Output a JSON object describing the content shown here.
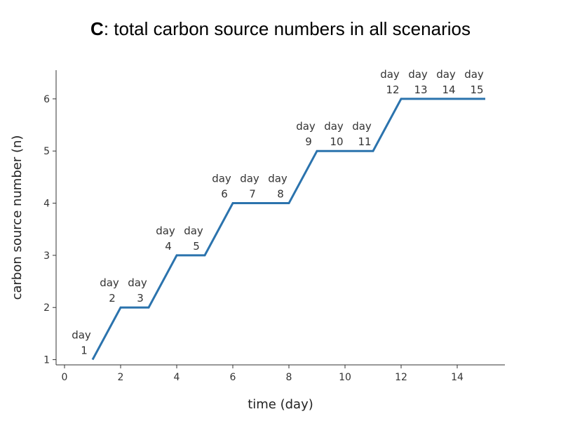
{
  "chart_data": {
    "type": "line",
    "title_prefix": "C",
    "title_rest": ": total carbon source numbers in all scenarios",
    "xlabel": "time (day)",
    "ylabel": "carbon source number (n)",
    "xlim": [
      -0.3,
      15.7
    ],
    "ylim": [
      0.9,
      6.55
    ],
    "x_ticks": [
      0,
      2,
      4,
      6,
      8,
      10,
      12,
      14
    ],
    "y_ticks": [
      1,
      2,
      3,
      4,
      5,
      6
    ],
    "grid": false,
    "series": [
      {
        "color": "#2b73ad",
        "x": [
          1,
          2,
          3,
          4,
          5,
          6,
          7,
          8,
          9,
          10,
          11,
          12,
          13,
          14,
          15
        ],
        "y": [
          1,
          2,
          2,
          3,
          3,
          4,
          4,
          4,
          5,
          5,
          5,
          6,
          6,
          6,
          6
        ]
      }
    ],
    "annotations": [
      {
        "x": 1,
        "y": 1,
        "line1": "day",
        "line2": "1"
      },
      {
        "x": 2,
        "y": 2,
        "line1": "day",
        "line2": "2"
      },
      {
        "x": 3,
        "y": 2,
        "line1": "day",
        "line2": "3"
      },
      {
        "x": 4,
        "y": 3,
        "line1": "day",
        "line2": "4"
      },
      {
        "x": 5,
        "y": 3,
        "line1": "day",
        "line2": "5"
      },
      {
        "x": 6,
        "y": 4,
        "line1": "day",
        "line2": "6"
      },
      {
        "x": 7,
        "y": 4,
        "line1": "day",
        "line2": "7"
      },
      {
        "x": 8,
        "y": 4,
        "line1": "day",
        "line2": "8"
      },
      {
        "x": 9,
        "y": 5,
        "line1": "day",
        "line2": "9"
      },
      {
        "x": 10,
        "y": 5,
        "line1": "day",
        "line2": "10"
      },
      {
        "x": 11,
        "y": 5,
        "line1": "day",
        "line2": "11"
      },
      {
        "x": 12,
        "y": 6,
        "line1": "day",
        "line2": "12"
      },
      {
        "x": 13,
        "y": 6,
        "line1": "day",
        "line2": "13"
      },
      {
        "x": 14,
        "y": 6,
        "line1": "day",
        "line2": "14"
      },
      {
        "x": 15,
        "y": 6,
        "line1": "day",
        "line2": "15"
      }
    ]
  }
}
